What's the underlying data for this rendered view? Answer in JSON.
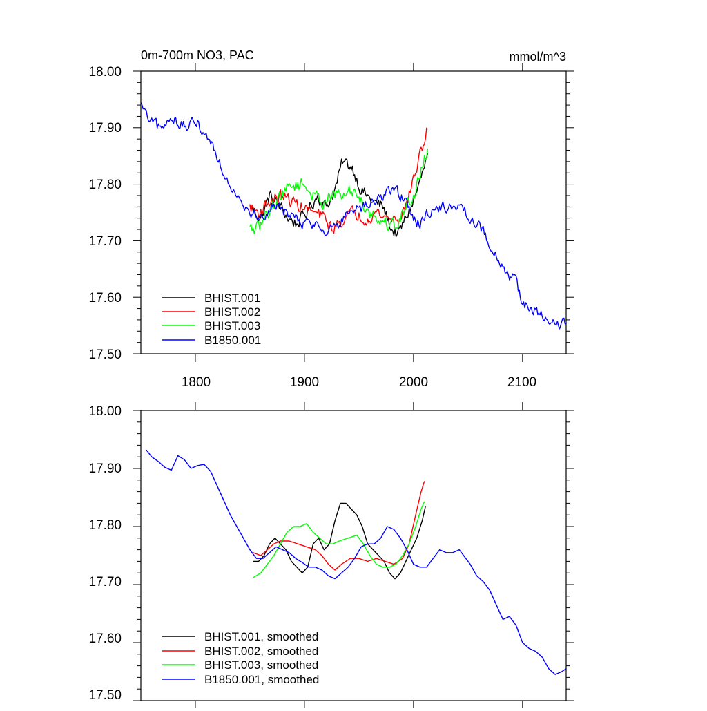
{
  "chart_data": [
    {
      "type": "line",
      "title_left": "0m-700m NO3, PAC",
      "title_right": "mmol/m^3",
      "xlim": [
        1750,
        2140
      ],
      "ylim": [
        17.5,
        18.0
      ],
      "x_ticks": [
        "1800",
        "1900",
        "2000",
        "2100"
      ],
      "y_ticks": [
        "17.50",
        "17.60",
        "17.70",
        "17.80",
        "17.90",
        "18.00"
      ],
      "legend_position": "bottom-left",
      "series": [
        {
          "name": "BHIST.001",
          "color": "#000000",
          "noise": 0.018,
          "points": [
            [
              1850,
              17.76
            ],
            [
              1860,
              17.74
            ],
            [
              1868,
              17.78
            ],
            [
              1878,
              17.76
            ],
            [
              1885,
              17.74
            ],
            [
              1893,
              17.73
            ],
            [
              1902,
              17.75
            ],
            [
              1912,
              17.78
            ],
            [
              1920,
              17.76
            ],
            [
              1928,
              17.79
            ],
            [
              1935,
              17.84
            ],
            [
              1944,
              17.83
            ],
            [
              1952,
              17.79
            ],
            [
              1962,
              17.77
            ],
            [
              1972,
              17.76
            ],
            [
              1980,
              17.72
            ],
            [
              1986,
              17.71
            ],
            [
              1993,
              17.74
            ],
            [
              2000,
              17.77
            ],
            [
              2007,
              17.81
            ],
            [
              2013,
              17.85
            ]
          ]
        },
        {
          "name": "BHIST.002",
          "color": "#ff0000",
          "noise": 0.018,
          "points": [
            [
              1850,
              17.76
            ],
            [
              1858,
              17.75
            ],
            [
              1868,
              17.77
            ],
            [
              1878,
              17.78
            ],
            [
              1888,
              17.77
            ],
            [
              1898,
              17.76
            ],
            [
              1908,
              17.75
            ],
            [
              1918,
              17.74
            ],
            [
              1926,
              17.72
            ],
            [
              1936,
              17.74
            ],
            [
              1946,
              17.75
            ],
            [
              1956,
              17.74
            ],
            [
              1966,
              17.75
            ],
            [
              1976,
              17.74
            ],
            [
              1986,
              17.74
            ],
            [
              1993,
              17.76
            ],
            [
              2000,
              17.81
            ],
            [
              2006,
              17.85
            ],
            [
              2013,
              17.9
            ]
          ]
        },
        {
          "name": "BHIST.003",
          "color": "#00ff00",
          "noise": 0.02,
          "points": [
            [
              1850,
              17.72
            ],
            [
              1858,
              17.72
            ],
            [
              1866,
              17.75
            ],
            [
              1874,
              17.77
            ],
            [
              1882,
              17.79
            ],
            [
              1892,
              17.8
            ],
            [
              1900,
              17.8
            ],
            [
              1908,
              17.78
            ],
            [
              1916,
              17.77
            ],
            [
              1926,
              17.78
            ],
            [
              1936,
              17.78
            ],
            [
              1946,
              17.79
            ],
            [
              1956,
              17.76
            ],
            [
              1966,
              17.74
            ],
            [
              1976,
              17.73
            ],
            [
              1986,
              17.73
            ],
            [
              1993,
              17.76
            ],
            [
              2000,
              17.78
            ],
            [
              2006,
              17.82
            ],
            [
              2013,
              17.86
            ]
          ]
        },
        {
          "name": "B1850.001",
          "color": "#0000ff",
          "noise": 0.016,
          "points": [
            [
              1750,
              17.94
            ],
            [
              1758,
              17.91
            ],
            [
              1766,
              17.9
            ],
            [
              1772,
              17.9
            ],
            [
              1778,
              17.92
            ],
            [
              1784,
              17.91
            ],
            [
              1792,
              17.9
            ],
            [
              1802,
              17.91
            ],
            [
              1808,
              17.89
            ],
            [
              1816,
              17.87
            ],
            [
              1824,
              17.83
            ],
            [
              1832,
              17.8
            ],
            [
              1840,
              17.78
            ],
            [
              1850,
              17.75
            ],
            [
              1860,
              17.74
            ],
            [
              1870,
              17.76
            ],
            [
              1878,
              17.76
            ],
            [
              1890,
              17.74
            ],
            [
              1900,
              17.73
            ],
            [
              1910,
              17.73
            ],
            [
              1920,
              17.72
            ],
            [
              1932,
              17.73
            ],
            [
              1944,
              17.75
            ],
            [
              1956,
              17.76
            ],
            [
              1966,
              17.77
            ],
            [
              1976,
              17.79
            ],
            [
              1984,
              17.79
            ],
            [
              1992,
              17.77
            ],
            [
              2000,
              17.74
            ],
            [
              2006,
              17.73
            ],
            [
              2014,
              17.75
            ],
            [
              2022,
              17.76
            ],
            [
              2030,
              17.76
            ],
            [
              2040,
              17.76
            ],
            [
              2048,
              17.75
            ],
            [
              2058,
              17.73
            ],
            [
              2066,
              17.71
            ],
            [
              2074,
              17.68
            ],
            [
              2082,
              17.65
            ],
            [
              2088,
              17.64
            ],
            [
              2094,
              17.63
            ],
            [
              2100,
              17.59
            ],
            [
              2108,
              17.58
            ],
            [
              2116,
              17.57
            ],
            [
              2124,
              17.55
            ],
            [
              2132,
              17.55
            ],
            [
              2140,
              17.56
            ]
          ]
        }
      ]
    },
    {
      "type": "line",
      "xlim": [
        1750,
        2140
      ],
      "ylim": [
        17.5,
        18.0
      ],
      "y_ticks": [
        "17.50",
        "17.60",
        "17.70",
        "17.80",
        "17.90",
        "18.00"
      ],
      "legend_position": "bottom-left",
      "series": [
        {
          "name": "BHIST.001, smoothed",
          "color": "#000000",
          "noise": 0,
          "points": [
            [
              1853,
              17.74
            ],
            [
              1858,
              17.74
            ],
            [
              1863,
              17.75
            ],
            [
              1868,
              17.77
            ],
            [
              1873,
              17.78
            ],
            [
              1878,
              17.77
            ],
            [
              1883,
              17.76
            ],
            [
              1888,
              17.74
            ],
            [
              1893,
              17.73
            ],
            [
              1898,
              17.72
            ],
            [
              1903,
              17.73
            ],
            [
              1908,
              17.77
            ],
            [
              1913,
              17.78
            ],
            [
              1918,
              17.76
            ],
            [
              1923,
              17.77
            ],
            [
              1928,
              17.81
            ],
            [
              1933,
              17.84
            ],
            [
              1938,
              17.84
            ],
            [
              1943,
              17.83
            ],
            [
              1948,
              17.82
            ],
            [
              1953,
              17.8
            ],
            [
              1958,
              17.77
            ],
            [
              1963,
              17.76
            ],
            [
              1968,
              17.75
            ],
            [
              1973,
              17.74
            ],
            [
              1978,
              17.72
            ],
            [
              1983,
              17.71
            ],
            [
              1988,
              17.72
            ],
            [
              1993,
              17.74
            ],
            [
              1998,
              17.76
            ],
            [
              2003,
              17.78
            ],
            [
              2008,
              17.81
            ],
            [
              2011,
              17.835
            ]
          ]
        },
        {
          "name": "BHIST.002, smoothed",
          "color": "#ff0000",
          "noise": 0,
          "points": [
            [
              1853,
              17.755
            ],
            [
              1860,
              17.75
            ],
            [
              1866,
              17.76
            ],
            [
              1872,
              17.77
            ],
            [
              1878,
              17.775
            ],
            [
              1886,
              17.775
            ],
            [
              1894,
              17.77
            ],
            [
              1902,
              17.765
            ],
            [
              1910,
              17.76
            ],
            [
              1916,
              17.75
            ],
            [
              1922,
              17.735
            ],
            [
              1928,
              17.725
            ],
            [
              1934,
              17.735
            ],
            [
              1942,
              17.745
            ],
            [
              1950,
              17.745
            ],
            [
              1958,
              17.74
            ],
            [
              1966,
              17.745
            ],
            [
              1974,
              17.74
            ],
            [
              1982,
              17.735
            ],
            [
              1990,
              17.745
            ],
            [
              1996,
              17.77
            ],
            [
              2002,
              17.82
            ],
            [
              2007,
              17.86
            ],
            [
              2010,
              17.878
            ]
          ]
        },
        {
          "name": "BHIST.003, smoothed",
          "color": "#00ff00",
          "noise": 0,
          "points": [
            [
              1853,
              17.712
            ],
            [
              1860,
              17.72
            ],
            [
              1866,
              17.735
            ],
            [
              1872,
              17.75
            ],
            [
              1878,
              17.77
            ],
            [
              1884,
              17.79
            ],
            [
              1890,
              17.8
            ],
            [
              1896,
              17.8
            ],
            [
              1902,
              17.805
            ],
            [
              1908,
              17.79
            ],
            [
              1914,
              17.78
            ],
            [
              1920,
              17.77
            ],
            [
              1926,
              17.77
            ],
            [
              1932,
              17.775
            ],
            [
              1940,
              17.78
            ],
            [
              1948,
              17.785
            ],
            [
              1954,
              17.77
            ],
            [
              1960,
              17.75
            ],
            [
              1966,
              17.735
            ],
            [
              1972,
              17.73
            ],
            [
              1978,
              17.73
            ],
            [
              1984,
              17.735
            ],
            [
              1990,
              17.75
            ],
            [
              1996,
              17.77
            ],
            [
              2002,
              17.8
            ],
            [
              2007,
              17.83
            ],
            [
              2010,
              17.843
            ]
          ]
        },
        {
          "name": "B1850.001, smoothed",
          "color": "#0000ff",
          "noise": 0,
          "points": [
            [
              1755,
              17.932
            ],
            [
              1760,
              17.92
            ],
            [
              1766,
              17.912
            ],
            [
              1772,
              17.902
            ],
            [
              1778,
              17.897
            ],
            [
              1784,
              17.922
            ],
            [
              1790,
              17.915
            ],
            [
              1796,
              17.9
            ],
            [
              1802,
              17.905
            ],
            [
              1808,
              17.907
            ],
            [
              1814,
              17.895
            ],
            [
              1820,
              17.87
            ],
            [
              1826,
              17.845
            ],
            [
              1832,
              17.82
            ],
            [
              1838,
              17.8
            ],
            [
              1844,
              17.78
            ],
            [
              1850,
              17.76
            ],
            [
              1856,
              17.745
            ],
            [
              1862,
              17.745
            ],
            [
              1868,
              17.755
            ],
            [
              1874,
              17.765
            ],
            [
              1880,
              17.76
            ],
            [
              1886,
              17.755
            ],
            [
              1892,
              17.745
            ],
            [
              1898,
              17.738
            ],
            [
              1904,
              17.73
            ],
            [
              1910,
              17.73
            ],
            [
              1916,
              17.725
            ],
            [
              1922,
              17.715
            ],
            [
              1928,
              17.71
            ],
            [
              1934,
              17.72
            ],
            [
              1940,
              17.73
            ],
            [
              1946,
              17.745
            ],
            [
              1952,
              17.765
            ],
            [
              1958,
              17.77
            ],
            [
              1964,
              17.77
            ],
            [
              1970,
              17.78
            ],
            [
              1976,
              17.8
            ],
            [
              1982,
              17.795
            ],
            [
              1988,
              17.78
            ],
            [
              1994,
              17.76
            ],
            [
              2000,
              17.735
            ],
            [
              2006,
              17.73
            ],
            [
              2012,
              17.73
            ],
            [
              2018,
              17.745
            ],
            [
              2024,
              17.76
            ],
            [
              2030,
              17.755
            ],
            [
              2036,
              17.755
            ],
            [
              2042,
              17.76
            ],
            [
              2046,
              17.75
            ],
            [
              2052,
              17.735
            ],
            [
              2058,
              17.715
            ],
            [
              2064,
              17.705
            ],
            [
              2070,
              17.69
            ],
            [
              2076,
              17.665
            ],
            [
              2082,
              17.64
            ],
            [
              2088,
              17.645
            ],
            [
              2094,
              17.63
            ],
            [
              2100,
              17.6
            ],
            [
              2106,
              17.59
            ],
            [
              2112,
              17.585
            ],
            [
              2118,
              17.575
            ],
            [
              2124,
              17.555
            ],
            [
              2130,
              17.545
            ],
            [
              2136,
              17.55
            ],
            [
              2140,
              17.555
            ]
          ]
        }
      ]
    }
  ]
}
